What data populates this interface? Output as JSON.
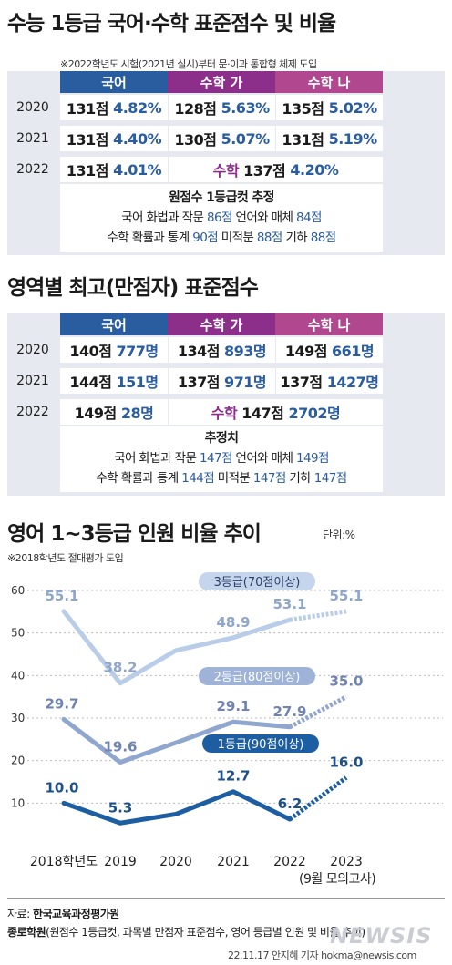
{
  "section1": {
    "title": "수능 1등급 국어·수학 표준점수 및 비율",
    "note": "※2022학년도 시험(2021년 실시)부터 문·이과 통합형 체제 도입",
    "headers": [
      "국어",
      "수학 가",
      "수학 나"
    ],
    "rows": [
      {
        "year": "2020",
        "cells": [
          {
            "score": "131점",
            "pct": "4.82%"
          },
          {
            "score": "128점",
            "pct": "5.63%"
          },
          {
            "score": "135점",
            "pct": "5.02%"
          }
        ]
      },
      {
        "year": "2021",
        "cells": [
          {
            "score": "131점",
            "pct": "4.40%"
          },
          {
            "score": "130점",
            "pct": "5.07%"
          },
          {
            "score": "131점",
            "pct": "5.19%"
          }
        ]
      }
    ],
    "row2022": {
      "year": "2022",
      "korean": {
        "score": "131점",
        "pct": "4.01%"
      },
      "math_label": "수학",
      "math": {
        "score": "137점",
        "pct": "4.20%"
      }
    },
    "box": {
      "heading": "원점수 1등급컷 추정",
      "line1": {
        "a": "국어 화법과 작문",
        "av": "86점",
        "b": "언어와 매체",
        "bv": "84점"
      },
      "line2": {
        "a": "수학 확률과 통계",
        "av": "90점",
        "b": "미적분",
        "bv": "88점",
        "c": "기하",
        "cv": "88점"
      }
    }
  },
  "section2": {
    "title": "영역별 최고(만점자) 표준점수",
    "headers": [
      "국어",
      "수학 가",
      "수학 나"
    ],
    "rows": [
      {
        "year": "2020",
        "cells": [
          {
            "score": "140점",
            "cnt": "777명"
          },
          {
            "score": "134점",
            "cnt": "893명"
          },
          {
            "score": "149점",
            "cnt": "661명"
          }
        ]
      },
      {
        "year": "2021",
        "cells": [
          {
            "score": "144점",
            "cnt": "151명"
          },
          {
            "score": "137점",
            "cnt": "971명"
          },
          {
            "score": "137점",
            "cnt": "1427명"
          }
        ]
      }
    ],
    "row2022": {
      "year": "2022",
      "korean": {
        "score": "149점",
        "cnt": "28명"
      },
      "math_label": "수학",
      "math": {
        "score": "147점",
        "cnt": "2702명"
      }
    },
    "box": {
      "heading": "추정치",
      "line1": {
        "a": "국어 화법과 작문",
        "av": "147점",
        "b": "언어와 매체",
        "bv": "149점"
      },
      "line2": {
        "a": "수학 확률과 통계",
        "av": "144점",
        "b": "미적분",
        "bv": "147점",
        "c": "기하",
        "cv": "147점"
      }
    }
  },
  "section3": {
    "title": "영어 1~3등급 인원 비율 추이",
    "unit": "단위:%",
    "note": "※2018학년도 절대평가 도입",
    "x_sub": "(9월 모의고사)"
  },
  "chart_data": {
    "type": "line",
    "title": "영어 1~3등급 인원 비율 추이",
    "x": [
      "2018학년도",
      "2019",
      "2020",
      "2021",
      "2022",
      "2023"
    ],
    "ylim": [
      0,
      60
    ],
    "yticks": [
      10,
      20,
      30,
      40,
      50,
      60
    ],
    "series": [
      {
        "name": "3등급(70점이상)",
        "values": [
          55.1,
          38.2,
          45.9,
          48.9,
          53.1,
          55.1
        ],
        "labels": [
          "55.1",
          "38.2",
          "",
          "48.9",
          "53.1",
          "55.1"
        ],
        "color": "#b9cde8",
        "label_color": "#8ea6c9"
      },
      {
        "name": "2등급(80점이상)",
        "values": [
          29.7,
          19.6,
          24.2,
          29.1,
          27.9,
          35.0
        ],
        "labels": [
          "29.7",
          "19.6",
          "",
          "29.1",
          "27.9",
          "35.0"
        ],
        "color": "#8fa6cf",
        "label_color": "#6f84b0"
      },
      {
        "name": "1등급(90점이상)",
        "values": [
          10.0,
          5.3,
          7.4,
          12.7,
          6.2,
          16.0
        ],
        "labels": [
          "10.0",
          "5.3",
          "",
          "12.7",
          "6.2",
          "16.0"
        ],
        "color": "#1d5ea3",
        "label_color": "#1d4f8a"
      }
    ],
    "grid": true
  },
  "footer": {
    "source_label": "자료:",
    "source1": "한국교육과정평가원",
    "source2_bold": "종로학원",
    "source2_rest": "(원점수 1등급컷, 과목별 만점자 표준점수, 영어 등급별 인원 및 비율 추이)",
    "credit": "22.11.17 안지혜 기자 hokma@newsis.com",
    "logo": "NEWSIS"
  },
  "colors": {
    "korean": "#2a5d9f",
    "math_ga": "#8b2f8a",
    "math_na": "#b0478f"
  }
}
